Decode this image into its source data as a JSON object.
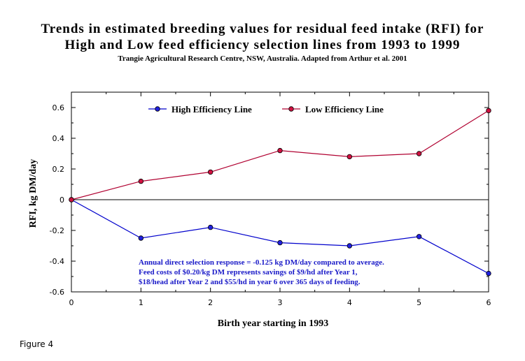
{
  "chart_data": {
    "type": "line",
    "title": "Trends in estimated breeding values for residual feed intake (RFI) for",
    "title_line2": "High and Low feed efficiency selection lines from 1993 to 1999",
    "subtitle": "Trangie Agricultural Research Centre, NSW, Australia. Adapted from Arthur et al. 2001",
    "xlabel": "Birth year starting in 1993",
    "ylabel": "RFI, kg DM/day",
    "x": [
      0,
      1,
      2,
      3,
      4,
      5,
      6
    ],
    "xlim": [
      0,
      6
    ],
    "ylim": [
      -0.6,
      0.7
    ],
    "x_ticks": [
      0,
      1,
      2,
      3,
      4,
      5,
      6
    ],
    "y_ticks": [
      -0.6,
      -0.4,
      -0.2,
      0,
      0.2,
      0.4,
      0.6
    ],
    "y_tick_labels": [
      "-0.6",
      "-0.4",
      "-0.2",
      "0",
      "0.2",
      "0.4",
      "0.6"
    ],
    "grid": false,
    "zero_line": true,
    "legend_position": "top",
    "series": [
      {
        "name": "High Efficiency Line",
        "color": "#0000CC",
        "marker_color": "#2020E0",
        "values": [
          0,
          -0.25,
          -0.18,
          -0.28,
          -0.3,
          -0.24,
          -0.48
        ]
      },
      {
        "name": "Low Efficiency Line",
        "color": "#B00030",
        "marker_color": "#D01040",
        "values": [
          0,
          0.12,
          0.18,
          0.32,
          0.28,
          0.3,
          0.58
        ]
      }
    ],
    "annotation_color": "#1A1AC8",
    "annotation": [
      "Annual direct selection response = -0.125 kg DM/day compared to average.",
      "Feed costs of $0.20/kg DM  represents savings of $9/hd after Year 1,",
      "$18/head after Year 2 and $55/hd in year 6 over 365 days of feeding."
    ]
  },
  "caption": "Figure 4"
}
